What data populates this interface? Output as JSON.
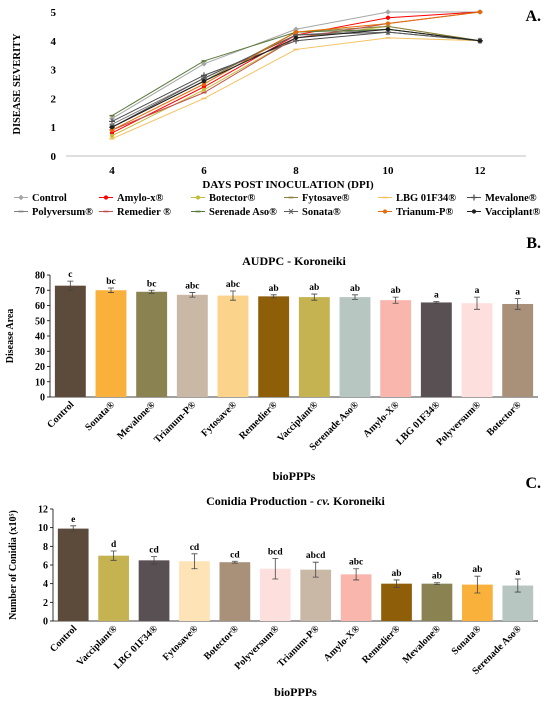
{
  "panels": [
    {
      "panel_label": "A.",
      "chart_data": {
        "type": "line",
        "title": "",
        "xlabel": "DAYS POST INOCULATION (DPI)",
        "ylabel": "DISEASE SEVERITY",
        "x": [
          4,
          6,
          8,
          10,
          12
        ],
        "xlim": [
          3,
          13
        ],
        "ylim": [
          0,
          5
        ],
        "yticks": [
          0,
          1,
          2,
          3,
          4,
          5
        ],
        "grid": false,
        "legend_position": "bottom",
        "series": [
          {
            "name": "Control",
            "color": "#a6a6a6",
            "marker": "diamond",
            "values": [
              1.3,
              3.2,
              4.4,
              5.0,
              5.0
            ]
          },
          {
            "name": "Amylo-x®",
            "color": "#ff0000",
            "marker": "circle",
            "values": [
              0.8,
              2.4,
              4.2,
              4.8,
              5.0
            ]
          },
          {
            "name": "Botector®",
            "color": "#c4bd3b",
            "marker": "circle",
            "values": [
              0.7,
              2.3,
              4.1,
              4.5,
              4.0
            ]
          },
          {
            "name": "Fytosave®",
            "color": "#8c7e3d",
            "marker": "dash",
            "values": [
              1.0,
              2.6,
              4.3,
              4.5,
              4.0
            ]
          },
          {
            "name": "LBG 01F34®",
            "color": "#f4c160",
            "marker": "dash",
            "values": [
              0.6,
              2.0,
              3.7,
              4.1,
              4.0
            ]
          },
          {
            "name": "Mevalone®",
            "color": "#4d4d4d",
            "marker": "plus",
            "values": [
              1.2,
              2.8,
              4.0,
              4.3,
              4.0
            ]
          },
          {
            "name": "Polyversum®",
            "color": "#7f7f7f",
            "marker": "dash",
            "values": [
              1.1,
              2.7,
              4.2,
              4.4,
              4.0
            ]
          },
          {
            "name": "Remedier ®",
            "color": "#c0504d",
            "marker": "dash",
            "values": [
              0.9,
              2.2,
              4.1,
              4.6,
              5.0
            ]
          },
          {
            "name": "Serenade Aso®",
            "color": "#5a7a3a",
            "marker": "dash",
            "values": [
              1.4,
              3.3,
              4.3,
              4.4,
              4.0
            ]
          },
          {
            "name": "Sonata®",
            "color": "#595959",
            "marker": "asterisk",
            "values": [
              1.0,
              2.7,
              4.2,
              4.3,
              4.0
            ]
          },
          {
            "name": "Trianum-P®",
            "color": "#e36c09",
            "marker": "circle",
            "values": [
              0.9,
              2.5,
              4.3,
              4.6,
              5.0
            ]
          },
          {
            "name": "Vacciplant®",
            "color": "#1f1f1f",
            "marker": "circle",
            "values": [
              1.0,
              2.6,
              4.1,
              4.4,
              4.0
            ]
          }
        ]
      }
    },
    {
      "panel_label": "B.",
      "chart_data": {
        "type": "bar",
        "title": "AUDPC - Koroneiki",
        "xlabel": "bioPPPs",
        "ylabel": "Disease Area",
        "ylim": [
          0,
          80
        ],
        "yticks": [
          0,
          10,
          20,
          30,
          40,
          50,
          60,
          70,
          80
        ],
        "grid": false,
        "categories": [
          "Control",
          "Sonata®",
          "Mevalone®",
          "Trianum-P®",
          "Fytosave®",
          "Remedier®",
          "Vacciplant®",
          "Serenade Aso®",
          "Amylo-X®",
          "LBG 01F34®",
          "Polyversum®",
          "Botector®"
        ],
        "values": [
          73,
          70,
          69,
          67,
          66.5,
          66,
          65.5,
          65.5,
          63.5,
          62,
          61.5,
          61
        ],
        "errors": [
          3,
          1.5,
          1,
          1.5,
          3,
          1,
          2,
          1.5,
          2,
          0.5,
          4,
          3.5
        ],
        "letters": [
          "c",
          "bc",
          "bc",
          "abc",
          "abc",
          "ab",
          "ab",
          "ab",
          "ab",
          "a",
          "a",
          "a"
        ],
        "colors": [
          "#5c4a3a",
          "#f9b13b",
          "#8a8250",
          "#c9b8a6",
          "#fbd38b",
          "#8f5e08",
          "#c4b350",
          "#b8c6c1",
          "#f8b6ad",
          "#585052",
          "#fde0de",
          "#a99079"
        ]
      }
    },
    {
      "panel_label": "C.",
      "chart_data": {
        "type": "bar",
        "title": "Conidia Production - cv. Koroneiki",
        "title_prefix": "Conidia Production - ",
        "title_italic": "cv.",
        "title_suffix": " Koroneiki",
        "xlabel": "bioPPPs",
        "ylabel": "Number of Conidia (x10⁵)",
        "ylim": [
          0,
          12
        ],
        "yticks": [
          0,
          2,
          4,
          6,
          8,
          10,
          12
        ],
        "grid": false,
        "categories": [
          "Control",
          "Vacciplant®",
          "LBG 01F34®",
          "Fytosave®",
          "Botector®",
          "Polyversum®",
          "Trianum-P®",
          "Amylo-X®",
          "Remedier®",
          "Mevalone®",
          "Sonata®",
          "Serenade Aso®"
        ],
        "values": [
          9.9,
          7.0,
          6.5,
          6.4,
          6.3,
          5.6,
          5.5,
          5.0,
          4.0,
          4.0,
          3.9,
          3.8
        ],
        "errors": [
          0.3,
          0.5,
          0.4,
          0.8,
          0.1,
          1.1,
          0.8,
          0.6,
          0.4,
          0.1,
          0.9,
          0.7
        ],
        "letters": [
          "e",
          "d",
          "cd",
          "cd",
          "cd",
          "bcd",
          "abcd",
          "abc",
          "ab",
          "ab",
          "ab",
          "a"
        ],
        "colors": [
          "#5c4a3a",
          "#c4b350",
          "#585052",
          "#fde3b5",
          "#a99079",
          "#fde0de",
          "#c9b8a6",
          "#f8b6ad",
          "#8f5e08",
          "#8a8250",
          "#f9b13b",
          "#b8c6c1"
        ]
      }
    }
  ]
}
